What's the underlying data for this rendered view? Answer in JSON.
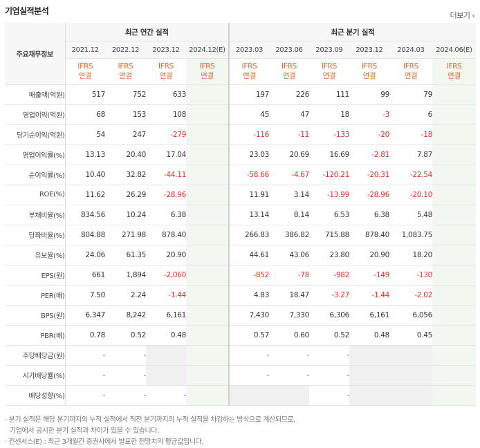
{
  "header": {
    "title": "기업실적분석",
    "more_label": "더보기",
    "more_icon": "chevron-right-icon"
  },
  "table": {
    "row_header": "주요재무정보",
    "group_annual": "최근 연간 실적",
    "group_quarter": "최근 분기 실적",
    "periods": [
      "2021.12",
      "2022.12",
      "2023.12",
      "2024.12(E)",
      "2023.03",
      "2023.06",
      "2023.09",
      "2023.12",
      "2024.03",
      "2024.06(E)"
    ],
    "ifrs_line1": "IFRS",
    "ifrs_line2": "연결",
    "rows": [
      {
        "label": "매출액(억원)",
        "values": [
          "517",
          "752",
          "633",
          "",
          "197",
          "226",
          "111",
          "99",
          "79",
          ""
        ]
      },
      {
        "label": "영업이익(억원)",
        "values": [
          "68",
          "153",
          "108",
          "",
          "45",
          "47",
          "18",
          "-3",
          "6",
          ""
        ]
      },
      {
        "label": "당기순이익(억원)",
        "values": [
          "54",
          "247",
          "-279",
          "",
          "-116",
          "-11",
          "-133",
          "-20",
          "-18",
          ""
        ]
      },
      {
        "label": "영업이익률(%)",
        "values": [
          "13.13",
          "20.40",
          "17.04",
          "",
          "23.03",
          "20.69",
          "16.69",
          "-2.81",
          "7.87",
          ""
        ]
      },
      {
        "label": "순이익률(%)",
        "values": [
          "10.40",
          "32.82",
          "-44.11",
          "",
          "-58.66",
          "-4.67",
          "-120.21",
          "-20.31",
          "-22.54",
          ""
        ]
      },
      {
        "label": "ROE(%)",
        "values": [
          "11.62",
          "26.29",
          "-28.96",
          "",
          "11.91",
          "3.14",
          "-13.99",
          "-28.96",
          "-20.10",
          ""
        ]
      },
      {
        "label": "부채비율(%)",
        "values": [
          "834.56",
          "10.24",
          "6.38",
          "",
          "13.14",
          "8.14",
          "6.53",
          "6.38",
          "5.48",
          ""
        ]
      },
      {
        "label": "당좌비율(%)",
        "values": [
          "804.88",
          "271.98",
          "878.40",
          "",
          "266.83",
          "386.82",
          "715.88",
          "878.40",
          "1,083.75",
          ""
        ]
      },
      {
        "label": "유보율(%)",
        "values": [
          "24.06",
          "61.35",
          "20.90",
          "",
          "44.61",
          "43.06",
          "23.80",
          "20.90",
          "18.20",
          ""
        ]
      },
      {
        "label": "EPS(원)",
        "values": [
          "661",
          "1,894",
          "-2,060",
          "",
          "-852",
          "-78",
          "-982",
          "-149",
          "-130",
          ""
        ]
      },
      {
        "label": "PER(배)",
        "values": [
          "7.50",
          "2.24",
          "-1.44",
          "",
          "4.83",
          "18.47",
          "-3.27",
          "-1.44",
          "-2.02",
          ""
        ]
      },
      {
        "label": "BPS(원)",
        "values": [
          "6,347",
          "8,242",
          "6,161",
          "",
          "7,430",
          "7,330",
          "6,306",
          "6,161",
          "6,056",
          ""
        ]
      },
      {
        "label": "PBR(배)",
        "values": [
          "0.78",
          "0.52",
          "0.48",
          "",
          "0.57",
          "0.60",
          "0.52",
          "0.48",
          "0.45",
          ""
        ]
      },
      {
        "label": "주당배당금(원)",
        "values": [
          "-",
          "-",
          "",
          "",
          "-",
          "-",
          "-",
          "",
          "",
          ""
        ]
      },
      {
        "label": "시가배당률(%)",
        "values": [
          "-",
          "-",
          "",
          "",
          "-",
          "-",
          "-",
          "",
          "",
          ""
        ]
      },
      {
        "label": "배당성향(%)",
        "values": [
          "-",
          "-",
          "-",
          "",
          "",
          "",
          "-",
          "",
          "",
          ""
        ]
      }
    ]
  },
  "notes": {
    "line1": "· 분기 실적은 해당 분기까지의 누적 실적에서 직전 분기까지의 누적 실적을 차감하는 방식으로 계산되므로,",
    "line2": "기업에서 공시한 분기 실적과 차이가 있을 수 있습니다.",
    "line3": "· 컨센서스(E) : 최근 3개월간 증권사에서 발표한 전망치의 평균값입니다."
  },
  "colors": {
    "negative": "#e02e25",
    "ifrs": "#e4672c",
    "estimate_bg": "#f2f7ef",
    "header_bg": "#f7f7f7"
  }
}
